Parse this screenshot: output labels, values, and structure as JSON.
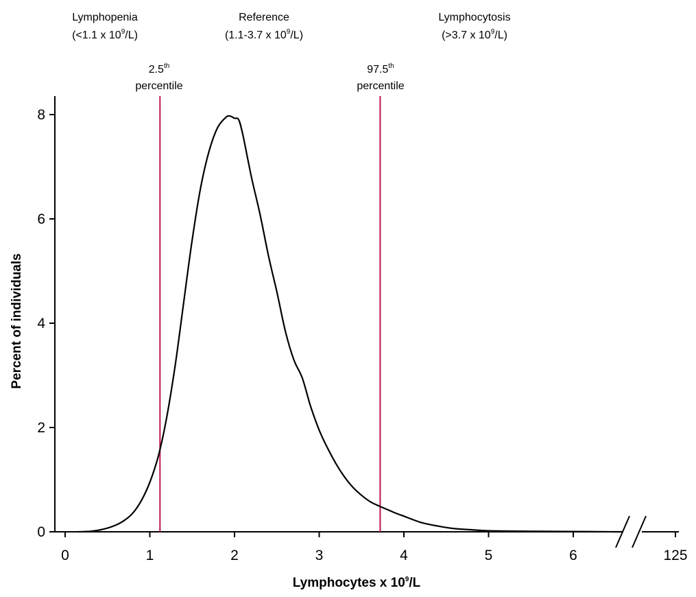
{
  "regions": [
    {
      "name": "Lymphopenia",
      "range_pre": "(<1.1 x 10",
      "range_exp": "9",
      "range_post": "/L)"
    },
    {
      "name": "Reference",
      "range_pre": "(1.1-3.7 x 10",
      "range_exp": "9",
      "range_post": "/L)"
    },
    {
      "name": "Lymphocytosis",
      "range_pre": "(>3.7 x 10",
      "range_exp": "9",
      "range_post": "/L)"
    }
  ],
  "percentile_lines": [
    {
      "num": "2.5",
      "sup": "th",
      "word": "percentile",
      "x": 1.12,
      "color": "#c0144c"
    },
    {
      "num": "97.5",
      "sup": "th",
      "word": "percentile",
      "x": 3.72,
      "color": "#c0144c"
    }
  ],
  "chart_data": {
    "type": "line",
    "ylabel": "Percent of individuals",
    "xlabel_pre": "Lymphocytes x 10",
    "xlabel_exp": "9",
    "xlabel_post": "/L",
    "x_ticks": [
      "0",
      "1",
      "2",
      "3",
      "4",
      "5",
      "6",
      "125"
    ],
    "y_ticks": [
      "0",
      "2",
      "4",
      "6",
      "8"
    ],
    "xlim": [
      0,
      7
    ],
    "ylim": [
      0,
      8
    ],
    "axis_break": "between 6 and 125",
    "grid": false,
    "line_color": "#000000",
    "series": [
      {
        "x": [
          0.15,
          0.3,
          0.45,
          0.6,
          0.7,
          0.8,
          0.9,
          1.0,
          1.1,
          1.2,
          1.3,
          1.4,
          1.5,
          1.6,
          1.7,
          1.8,
          1.9,
          1.95,
          2.0,
          2.05,
          2.1,
          2.2,
          2.3,
          2.4,
          2.5,
          2.6,
          2.7,
          2.8,
          2.9,
          3.0,
          3.1,
          3.2,
          3.3,
          3.4,
          3.5,
          3.6,
          3.7,
          3.8,
          3.9,
          4.0,
          4.2,
          4.4,
          4.6,
          4.8,
          5.0,
          5.5,
          6.0,
          6.5
        ],
        "y": [
          0.0,
          0.01,
          0.05,
          0.13,
          0.22,
          0.36,
          0.6,
          0.95,
          1.45,
          2.2,
          3.2,
          4.4,
          5.6,
          6.6,
          7.3,
          7.75,
          7.95,
          7.97,
          7.93,
          7.9,
          7.6,
          6.8,
          6.1,
          5.3,
          4.6,
          3.85,
          3.3,
          2.95,
          2.4,
          1.95,
          1.6,
          1.3,
          1.05,
          0.85,
          0.7,
          0.58,
          0.5,
          0.43,
          0.36,
          0.3,
          0.18,
          0.11,
          0.06,
          0.04,
          0.02,
          0.01,
          0.005,
          0.0
        ]
      }
    ]
  }
}
